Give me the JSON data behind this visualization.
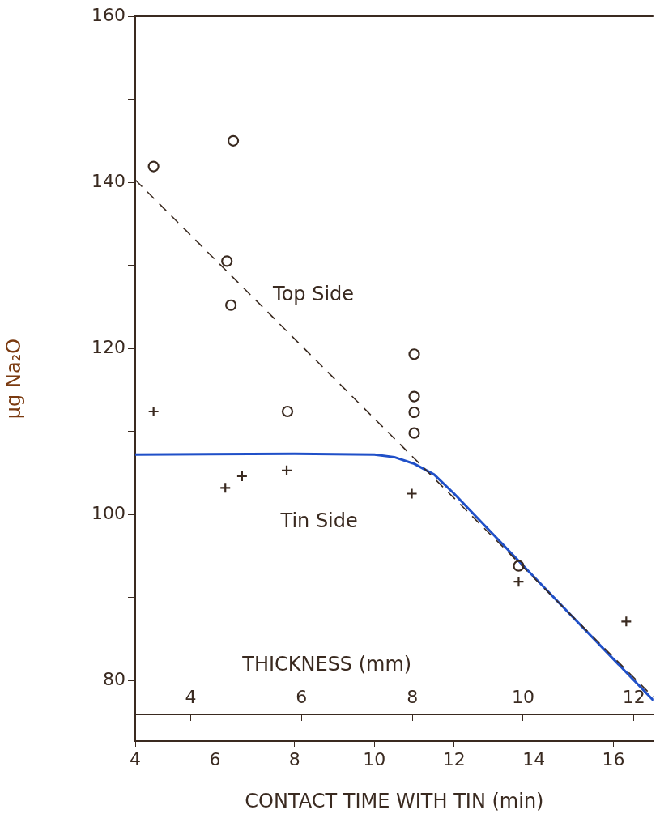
{
  "chart_data": {
    "type": "scatter",
    "xlabel": "CONTACT TIME WITH TIN (min)",
    "ylabel": "μg Na₂O",
    "x2label": "THICKNESS (mm)",
    "xlim": [
      4,
      17
    ],
    "xticks": [
      4,
      6,
      8,
      10,
      12,
      14,
      16
    ],
    "x2lim": [
      3.0,
      12.35
    ],
    "x2ticks": [
      4,
      6,
      8,
      10,
      12
    ],
    "ylim": [
      72.7,
      160
    ],
    "yticks": [
      {
        "value": 80,
        "label": "80"
      },
      {
        "value": 90,
        "label": null
      },
      {
        "value": 100,
        "label": "100"
      },
      {
        "value": 110,
        "label": null
      },
      {
        "value": 120,
        "label": "120"
      },
      {
        "value": 130,
        "label": null
      },
      {
        "value": 140,
        "label": "140"
      },
      {
        "value": 150,
        "label": null
      },
      {
        "value": 160,
        "label": "160"
      }
    ],
    "grid": false,
    "legend": false,
    "series": [
      {
        "type": "scatter",
        "marker": "circle",
        "color": "#3a2a20",
        "x": [
          4.46,
          6.46,
          6.3,
          6.4,
          11.0,
          11.0,
          11.0,
          11.0,
          7.82,
          13.62
        ],
        "values": [
          141.9,
          145.0,
          130.5,
          125.2,
          119.3,
          114.2,
          112.3,
          109.8,
          112.4,
          93.8
        ]
      },
      {
        "type": "scatter",
        "marker": "cross",
        "color": "#3a2a20",
        "x": [
          4.46,
          6.26,
          6.68,
          7.8,
          10.94,
          13.62,
          16.32
        ],
        "values": [
          112.4,
          103.2,
          104.6,
          105.3,
          102.5,
          91.9,
          87.1
        ]
      },
      {
        "type": "line",
        "name": "Top Side",
        "line_style": "dashed",
        "marker": "none",
        "color": "#3a2a20",
        "x": [
          4,
          17
        ],
        "values": [
          140.3,
          78.0
        ]
      },
      {
        "type": "line",
        "name": "Tin Side",
        "line_style": "solid",
        "marker": "none",
        "color": "#2050c8",
        "x": [
          4,
          8,
          10,
          10.5,
          11,
          11.5,
          12,
          14,
          17
        ],
        "values": [
          107.2,
          107.3,
          107.2,
          106.9,
          106.1,
          104.8,
          102.5,
          92.5,
          77.6
        ]
      }
    ]
  }
}
